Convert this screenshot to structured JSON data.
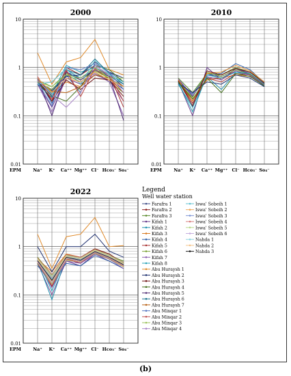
{
  "caption": "(b)",
  "legend": {
    "title": "Legend",
    "subtitle": "Well water station"
  },
  "chart_data": [
    {
      "type": "line",
      "title": "2000",
      "scale": "log",
      "ylim": [
        0.01,
        10
      ],
      "y_ticks": [
        "10",
        "1",
        "0.1",
        "0.01"
      ],
      "x_prefix": "EPM",
      "categories": [
        "Na⁺",
        "K⁺",
        "Ca⁺⁺",
        "Mg⁺⁺",
        "Cl⁻",
        "Hco₃⁻",
        "So₄⁻"
      ],
      "series": [
        {
          "name": "Farafra 1",
          "values": [
            0.55,
            0.3,
            0.8,
            0.6,
            0.9,
            0.6,
            0.35
          ]
        },
        {
          "name": "Farafra 2",
          "values": [
            0.6,
            0.2,
            1.0,
            0.7,
            1.1,
            0.7,
            0.4
          ]
        },
        {
          "name": "Farafra 3",
          "values": [
            0.5,
            0.35,
            0.7,
            0.5,
            0.8,
            0.5,
            0.3
          ]
        },
        {
          "name": "Kifah 1",
          "values": [
            0.45,
            0.15,
            0.6,
            0.45,
            0.7,
            0.55,
            0.2
          ]
        },
        {
          "name": "Kifah 2",
          "values": [
            0.55,
            0.25,
            0.9,
            0.6,
            1.0,
            0.65,
            0.45
          ]
        },
        {
          "name": "Kifah 3",
          "values": [
            0.5,
            0.3,
            0.5,
            0.4,
            0.9,
            0.6,
            0.3
          ]
        },
        {
          "name": "Kifah 4",
          "values": [
            0.6,
            0.18,
            0.7,
            0.3,
            1.2,
            0.8,
            0.5
          ]
        },
        {
          "name": "Kifah 5",
          "values": [
            0.5,
            0.22,
            0.85,
            0.25,
            0.95,
            0.7,
            0.15
          ]
        },
        {
          "name": "Kifah 6",
          "values": [
            0.55,
            0.4,
            0.75,
            0.55,
            0.85,
            0.6,
            0.4
          ]
        },
        {
          "name": "Kifah 7",
          "values": [
            0.45,
            0.12,
            0.6,
            0.5,
            0.75,
            0.5,
            0.1
          ]
        },
        {
          "name": "Kifah 8",
          "values": [
            0.6,
            0.28,
            1.1,
            0.8,
            1.0,
            0.7,
            0.5
          ]
        },
        {
          "name": "Abu Huraysh 1",
          "values": [
            2.0,
            0.45,
            1.3,
            1.6,
            3.8,
            0.9,
            0.7
          ]
        },
        {
          "name": "Abu Huraysh 2",
          "values": [
            0.5,
            0.33,
            0.65,
            0.7,
            1.3,
            0.8,
            0.6
          ]
        },
        {
          "name": "Abu Huraysh 3",
          "values": [
            0.55,
            0.2,
            0.55,
            0.35,
            0.6,
            0.55,
            0.25
          ]
        },
        {
          "name": "Abu Huraysh 4",
          "values": [
            0.5,
            0.26,
            0.2,
            0.4,
            1.1,
            0.9,
            0.5
          ]
        },
        {
          "name": "Abu Huraysh 5",
          "values": [
            0.6,
            0.1,
            0.8,
            0.55,
            0.9,
            0.65,
            0.08
          ]
        },
        {
          "name": "Abu Huraysh 6",
          "values": [
            0.45,
            0.24,
            0.9,
            0.7,
            1.5,
            0.75,
            0.45
          ]
        },
        {
          "name": "Abu Huraysh 7",
          "values": [
            0.55,
            0.32,
            0.3,
            0.4,
            0.7,
            0.6,
            0.3
          ]
        },
        {
          "name": "Abu Minqar 1",
          "values": [
            0.5,
            0.16,
            1.0,
            0.9,
            1.2,
            0.8,
            0.35
          ]
        },
        {
          "name": "Abu Minqar 2",
          "values": [
            0.65,
            0.22,
            0.9,
            0.25,
            0.95,
            0.7,
            0.2
          ]
        },
        {
          "name": "Abu Minqar 3",
          "values": [
            0.5,
            0.4,
            0.7,
            0.6,
            1.0,
            0.6,
            0.6
          ]
        },
        {
          "name": "Abu Minqar 4",
          "values": [
            0.55,
            0.27,
            0.15,
            0.3,
            1.1,
            0.7,
            0.3
          ]
        },
        {
          "name": "Iswa' Sobeih 1",
          "values": [
            0.45,
            0.5,
            0.95,
            0.45,
            1.4,
            0.7,
            0.5
          ]
        },
        {
          "name": "Iswa' Sobeih 2",
          "values": [
            0.6,
            0.3,
            0.6,
            0.5,
            0.8,
            0.55,
            0.4
          ]
        }
      ]
    },
    {
      "type": "line",
      "title": "2010",
      "scale": "log",
      "ylim": [
        0.01,
        10
      ],
      "y_ticks": [
        "10",
        "1",
        "0.1",
        "0.01"
      ],
      "x_prefix": "EPM",
      "categories": [
        "Na⁺",
        "K⁺",
        "Ca⁺⁺",
        "Mg⁺⁺",
        "Cl⁻",
        "Hco₃⁻",
        "So₄⁻"
      ],
      "series": [
        {
          "name": "Farafra 1",
          "values": [
            0.55,
            0.25,
            0.7,
            0.65,
            0.9,
            0.75,
            0.45
          ]
        },
        {
          "name": "Farafra 2",
          "values": [
            0.5,
            0.2,
            0.6,
            0.6,
            0.85,
            0.7,
            0.42
          ]
        },
        {
          "name": "Farafra 3",
          "values": [
            0.6,
            0.3,
            0.75,
            0.7,
            1.0,
            0.8,
            0.5
          ]
        },
        {
          "name": "Kifah 1",
          "values": [
            0.5,
            0.1,
            1.0,
            0.55,
            0.95,
            0.75,
            0.45
          ]
        },
        {
          "name": "Kifah 2",
          "values": [
            0.45,
            0.15,
            0.65,
            0.35,
            0.8,
            0.7,
            0.4
          ]
        },
        {
          "name": "Kifah 3",
          "values": [
            0.55,
            0.22,
            0.55,
            0.6,
            0.7,
            0.65,
            0.42
          ]
        },
        {
          "name": "Kifah 4",
          "values": [
            0.5,
            0.28,
            0.7,
            0.75,
            1.2,
            0.9,
            0.48
          ]
        },
        {
          "name": "Kifah 5",
          "values": [
            0.52,
            0.18,
            0.6,
            0.5,
            0.75,
            0.7,
            0.44
          ]
        },
        {
          "name": "Kifah 6",
          "values": [
            0.48,
            0.24,
            0.8,
            0.65,
            0.9,
            0.72,
            0.46
          ]
        },
        {
          "name": "Kifah 7",
          "values": [
            0.58,
            0.26,
            0.65,
            0.55,
            0.85,
            0.68,
            0.43
          ]
        },
        {
          "name": "Kifah 8",
          "values": [
            0.5,
            0.12,
            0.7,
            0.6,
            0.8,
            0.75,
            0.45
          ]
        },
        {
          "name": "Abu Huraysh 1",
          "values": [
            0.55,
            0.2,
            0.75,
            0.8,
            1.1,
            0.85,
            0.5
          ]
        },
        {
          "name": "Abu Huraysh 2",
          "values": [
            0.47,
            0.3,
            0.5,
            0.45,
            0.7,
            0.6,
            0.4
          ]
        },
        {
          "name": "Abu Huraysh 3",
          "values": [
            0.53,
            0.16,
            0.85,
            0.7,
            0.95,
            0.8,
            0.47
          ]
        },
        {
          "name": "Abu Huraysh 4",
          "values": [
            0.5,
            0.22,
            0.6,
            0.3,
            0.75,
            0.65,
            0.42
          ]
        }
      ]
    },
    {
      "type": "line",
      "title": "2022",
      "scale": "log",
      "ylim": [
        0.01,
        10
      ],
      "y_ticks": [
        "10",
        "1",
        "0.1",
        "0.01"
      ],
      "x_prefix": "EPM",
      "categories": [
        "Na⁺",
        "K⁺",
        "Ca⁺⁺",
        "Mg⁺⁺",
        "Cl⁻",
        "Hco₃⁻",
        "So₄⁻"
      ],
      "series": [
        {
          "name": "Farafra 1",
          "values": [
            0.55,
            0.2,
            0.6,
            0.5,
            0.8,
            0.6,
            0.45
          ]
        },
        {
          "name": "Farafra 2",
          "values": [
            0.5,
            0.15,
            0.55,
            0.45,
            0.75,
            0.55,
            0.4
          ]
        },
        {
          "name": "Farafra 3",
          "values": [
            0.6,
            0.25,
            0.65,
            0.55,
            0.85,
            0.65,
            0.5
          ]
        },
        {
          "name": "Kifah 1",
          "values": [
            0.45,
            0.1,
            0.5,
            0.4,
            0.7,
            0.5,
            0.35
          ]
        },
        {
          "name": "Kifah 2",
          "values": [
            0.5,
            0.08,
            0.6,
            0.5,
            0.8,
            0.6,
            0.4
          ]
        },
        {
          "name": "Kifah 3",
          "values": [
            0.55,
            0.3,
            0.7,
            0.6,
            0.9,
            0.7,
            0.45
          ]
        },
        {
          "name": "Kifah 4",
          "values": [
            0.4,
            0.18,
            0.45,
            0.4,
            0.65,
            0.5,
            0.35
          ]
        },
        {
          "name": "Kifah 5",
          "values": [
            0.5,
            0.22,
            0.55,
            0.5,
            0.75,
            0.6,
            0.4
          ]
        },
        {
          "name": "Kifah 6",
          "values": [
            0.6,
            0.26,
            0.65,
            0.55,
            0.85,
            0.65,
            0.45
          ]
        },
        {
          "name": "Kifah 7",
          "values": [
            0.45,
            0.14,
            0.5,
            0.45,
            0.7,
            0.55,
            0.35
          ]
        },
        {
          "name": "Kifah 8",
          "values": [
            0.55,
            0.12,
            0.6,
            0.5,
            0.8,
            0.6,
            0.4
          ]
        },
        {
          "name": "Abu Huraysh 1",
          "values": [
            1.8,
            0.35,
            1.6,
            1.8,
            4.0,
            1.0,
            1.05
          ]
        },
        {
          "name": "Abu Huraysh 2",
          "values": [
            1.0,
            0.3,
            1.0,
            1.0,
            1.8,
            0.8,
            0.6
          ]
        },
        {
          "name": "Abu Huraysh 3",
          "values": [
            0.5,
            0.2,
            0.6,
            0.6,
            0.9,
            0.7,
            0.45
          ]
        },
        {
          "name": "Abu Huraysh 4",
          "values": [
            0.45,
            0.16,
            0.55,
            0.5,
            0.75,
            0.6,
            0.4
          ]
        },
        {
          "name": "Abu Huraysh 5",
          "values": [
            0.55,
            0.24,
            0.65,
            0.6,
            0.85,
            0.65,
            0.45
          ]
        },
        {
          "name": "Abu Huraysh 6",
          "values": [
            0.5,
            0.2,
            0.6,
            0.55,
            0.8,
            0.6,
            0.42
          ]
        },
        {
          "name": "Abu Huraysh 7",
          "values": [
            0.48,
            0.18,
            0.55,
            0.5,
            0.78,
            0.58,
            0.4
          ]
        },
        {
          "name": "Abu Minqar 1",
          "values": [
            0.52,
            0.22,
            0.62,
            0.55,
            0.82,
            0.62,
            0.43
          ]
        },
        {
          "name": "Abu Minqar 2",
          "values": [
            0.58,
            0.26,
            0.68,
            0.6,
            0.88,
            0.66,
            0.47
          ]
        },
        {
          "name": "Abu Minqar 3",
          "values": [
            0.46,
            0.17,
            0.52,
            0.48,
            0.72,
            0.56,
            0.38
          ]
        },
        {
          "name": "Abu Minqar 4",
          "values": [
            0.5,
            0.2,
            0.6,
            0.52,
            0.8,
            0.6,
            0.42
          ]
        },
        {
          "name": "Iswa' Sobeih 1",
          "values": [
            0.55,
            0.24,
            0.64,
            0.58,
            0.84,
            0.64,
            0.44
          ]
        },
        {
          "name": "Iswa' Sobeih 2",
          "values": [
            0.5,
            0.19,
            0.58,
            0.5,
            0.78,
            0.6,
            0.41
          ]
        },
        {
          "name": "Iswa' Sobeih 3",
          "values": [
            0.53,
            0.23,
            0.63,
            0.55,
            0.83,
            0.63,
            0.44
          ]
        },
        {
          "name": "Iswa' Sobeih 4",
          "values": [
            0.47,
            0.16,
            0.54,
            0.47,
            0.74,
            0.57,
            0.39
          ]
        },
        {
          "name": "Iswa' Sobeih 5",
          "values": [
            0.56,
            0.25,
            0.66,
            0.58,
            0.86,
            0.66,
            0.46
          ]
        },
        {
          "name": "Iswa' Sobeih 6",
          "values": [
            0.49,
            0.18,
            0.57,
            0.5,
            0.77,
            0.59,
            0.41
          ]
        },
        {
          "name": "Nahda 1",
          "values": [
            0.52,
            0.21,
            0.61,
            0.53,
            0.81,
            0.61,
            0.43
          ]
        },
        {
          "name": "Nahda 2",
          "values": [
            0.54,
            0.23,
            0.63,
            0.56,
            0.83,
            0.63,
            0.44
          ]
        },
        {
          "name": "Nahda 3",
          "values": [
            0.51,
            0.2,
            0.6,
            0.52,
            0.79,
            0.6,
            0.42
          ]
        }
      ]
    }
  ],
  "colors": [
    "#3b4a86",
    "#8b1e1e",
    "#5a8a2a",
    "#6b3f8e",
    "#1f8fae",
    "#d8781e",
    "#2f5fa8",
    "#a83232",
    "#7ea33a",
    "#8a5fb0",
    "#2aa3b8",
    "#e08a2a",
    "#1d2f6e",
    "#6e1414",
    "#44701c",
    "#4f2a73",
    "#17708b",
    "#b86014",
    "#5a78c2",
    "#c25757",
    "#9bc25a",
    "#a985c8",
    "#5ec0d0",
    "#f0a85a",
    "#7f96d6",
    "#d88080",
    "#b8d88a",
    "#c4acde",
    "#8fd4e0",
    "#f5c48a",
    "#222222"
  ]
}
